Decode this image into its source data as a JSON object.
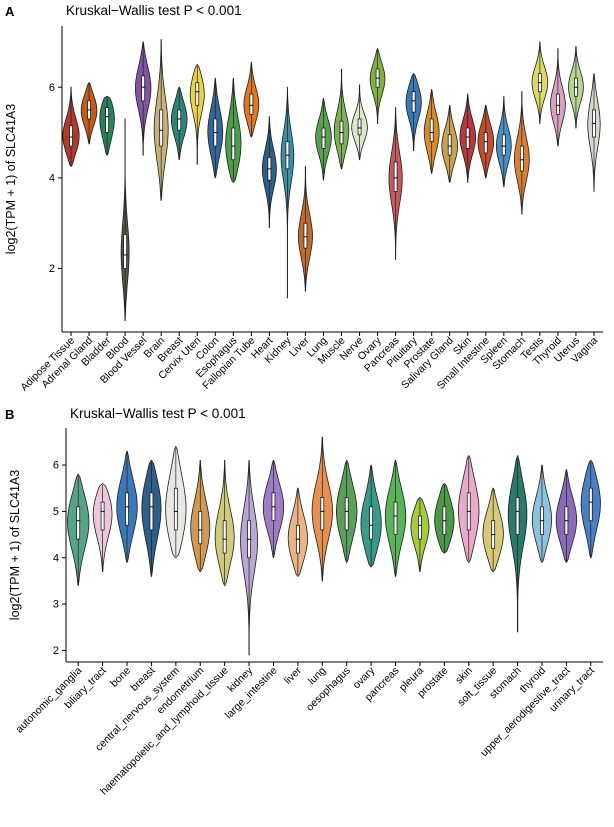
{
  "figure": {
    "panel_a_label": "A",
    "panel_b_label": "B"
  },
  "chart_data": [
    {
      "type": "violin",
      "panel": "A",
      "title": "Kruskal−Wallis test P < 0.001",
      "ylabel": "log2(TPM + 1) of SLC41A3",
      "ylim": [
        0.6,
        7.35
      ],
      "yticks": [
        2,
        4,
        6
      ],
      "grid": false,
      "legend": "none",
      "categories": [
        "Adipose Tissue",
        "Adrenal Gland",
        "Bladder",
        "Blood",
        "Blood Vessel",
        "Brain",
        "Breast",
        "Cervix Uteri",
        "Colon",
        "Esophagus",
        "Fallopian Tube",
        "Heart",
        "Kidney",
        "Liver",
        "Lung",
        "Muscle",
        "Nerve",
        "Ovary",
        "Pancreas",
        "Pituitary",
        "Prostate",
        "Salivary Gland",
        "Skin",
        "Small Intestine",
        "Spleen",
        "Stomach",
        "Testis",
        "Thyroid",
        "Uterus",
        "Vagina"
      ],
      "violins": [
        {
          "label": "Adipose Tissue",
          "color": "#b03a2e",
          "min": 4.25,
          "q1": 4.7,
          "median": 4.9,
          "q3": 5.15,
          "max": 6.0,
          "w": 1
        },
        {
          "label": "Adrenal Gland",
          "color": "#c35c1a",
          "min": 4.75,
          "q1": 5.3,
          "median": 5.5,
          "q3": 5.7,
          "max": 6.1,
          "w": 0.95
        },
        {
          "label": "Bladder",
          "color": "#27835a",
          "min": 4.5,
          "q1": 5.0,
          "median": 5.35,
          "q3": 5.55,
          "max": 5.8,
          "w": 0.9
        },
        {
          "label": "Blood",
          "color": "#55584a",
          "min": 0.85,
          "q1": 2.0,
          "median": 2.3,
          "q3": 2.75,
          "max": 5.3,
          "w": 0.5
        },
        {
          "label": "Blood Vessel",
          "color": "#8453a8",
          "min": 4.5,
          "q1": 5.7,
          "median": 6.0,
          "q3": 6.25,
          "max": 7.0,
          "w": 0.95
        },
        {
          "label": "Brain",
          "color": "#c9b27a",
          "min": 3.5,
          "q1": 4.7,
          "median": 5.05,
          "q3": 5.5,
          "max": 7.05,
          "w": 0.85
        },
        {
          "label": "Breast",
          "color": "#2e8577",
          "min": 4.4,
          "q1": 5.05,
          "median": 5.3,
          "q3": 5.5,
          "max": 6.0,
          "w": 0.95
        },
        {
          "label": "Cervix Uteri",
          "color": "#ecd545",
          "min": 4.3,
          "q1": 5.6,
          "median": 5.9,
          "q3": 6.1,
          "max": 6.5,
          "w": 0.9
        },
        {
          "label": "Colon",
          "color": "#31659c",
          "min": 4.0,
          "q1": 4.7,
          "median": 5.0,
          "q3": 5.3,
          "max": 6.2,
          "w": 0.9
        },
        {
          "label": "Esophagus",
          "color": "#4b9e47",
          "min": 3.9,
          "q1": 4.4,
          "median": 4.7,
          "q3": 5.1,
          "max": 6.2,
          "w": 0.95
        },
        {
          "label": "Fallopian Tube",
          "color": "#e2771f",
          "min": 4.9,
          "q1": 5.4,
          "median": 5.6,
          "q3": 5.85,
          "max": 6.55,
          "w": 0.9
        },
        {
          "label": "Heart",
          "color": "#2c5f8a",
          "min": 2.9,
          "q1": 3.95,
          "median": 4.2,
          "q3": 4.45,
          "max": 5.35,
          "w": 0.85
        },
        {
          "label": "Kidney",
          "color": "#3d8fa5",
          "min": 1.35,
          "q1": 4.2,
          "median": 4.5,
          "q3": 4.8,
          "max": 6.0,
          "w": 0.8
        },
        {
          "label": "Liver",
          "color": "#c06a2b",
          "min": 1.5,
          "q1": 2.45,
          "median": 2.7,
          "q3": 3.0,
          "max": 4.25,
          "w": 0.85
        },
        {
          "label": "Lung",
          "color": "#58a14e",
          "min": 3.95,
          "q1": 4.65,
          "median": 4.9,
          "q3": 5.1,
          "max": 5.75,
          "w": 0.95
        },
        {
          "label": "Muscle",
          "color": "#79b356",
          "min": 4.2,
          "q1": 4.75,
          "median": 5.0,
          "q3": 5.25,
          "max": 6.4,
          "w": 0.9
        },
        {
          "label": "Nerve",
          "color": "#dce9c8",
          "min": 4.4,
          "q1": 4.95,
          "median": 5.1,
          "q3": 5.3,
          "max": 6.05,
          "w": 0.95
        },
        {
          "label": "Ovary",
          "color": "#7cb342",
          "min": 5.2,
          "q1": 6.0,
          "median": 6.2,
          "q3": 6.4,
          "max": 6.85,
          "w": 0.9
        },
        {
          "label": "Pancreas",
          "color": "#c75b5b",
          "min": 2.2,
          "q1": 3.7,
          "median": 4.0,
          "q3": 4.35,
          "max": 5.55,
          "w": 0.8
        },
        {
          "label": "Pituitary",
          "color": "#3b78b5",
          "min": 4.6,
          "q1": 5.45,
          "median": 5.7,
          "q3": 5.9,
          "max": 6.3,
          "w": 0.95
        },
        {
          "label": "Prostate",
          "color": "#d98b27",
          "min": 4.1,
          "q1": 4.8,
          "median": 5.0,
          "q3": 5.3,
          "max": 5.95,
          "w": 0.9
        },
        {
          "label": "Salivary Gland",
          "color": "#c7a252",
          "min": 3.9,
          "q1": 4.5,
          "median": 4.7,
          "q3": 4.95,
          "max": 5.6,
          "w": 0.95
        },
        {
          "label": "Skin",
          "color": "#b23a3a",
          "min": 3.9,
          "q1": 4.65,
          "median": 4.9,
          "q3": 5.1,
          "max": 5.85,
          "w": 0.95
        },
        {
          "label": "Small Intestine",
          "color": "#c24e2e",
          "min": 4.0,
          "q1": 4.55,
          "median": 4.8,
          "q3": 5.0,
          "max": 5.6,
          "w": 0.95
        },
        {
          "label": "Spleen",
          "color": "#4a8fc2",
          "min": 3.8,
          "q1": 4.5,
          "median": 4.7,
          "q3": 4.95,
          "max": 5.8,
          "w": 0.9
        },
        {
          "label": "Stomach",
          "color": "#dd7f33",
          "min": 3.2,
          "q1": 4.15,
          "median": 4.4,
          "q3": 4.7,
          "max": 5.9,
          "w": 0.9
        },
        {
          "label": "Testis",
          "color": "#ded867",
          "min": 5.2,
          "q1": 5.9,
          "median": 6.1,
          "q3": 6.3,
          "max": 7.0,
          "w": 0.95
        },
        {
          "label": "Thyroid",
          "color": "#d9a0c4",
          "min": 4.7,
          "q1": 5.4,
          "median": 5.6,
          "q3": 5.85,
          "max": 6.85,
          "w": 0.9
        },
        {
          "label": "Uterus",
          "color": "#b5d78f",
          "min": 5.1,
          "q1": 5.8,
          "median": 6.0,
          "q3": 6.2,
          "max": 6.9,
          "w": 0.9
        },
        {
          "label": "Vagina",
          "color": "#d8d8d0",
          "min": 3.7,
          "q1": 4.9,
          "median": 5.2,
          "q3": 5.5,
          "max": 6.3,
          "w": 0.75
        }
      ]
    },
    {
      "type": "violin",
      "panel": "B",
      "title": "Kruskal−Wallis test P < 0.001",
      "ylabel": "log2(TPM + 1) of SLC41A3",
      "ylim": [
        1.75,
        6.8
      ],
      "yticks": [
        2,
        3,
        4,
        5,
        6
      ],
      "grid": false,
      "legend": "none",
      "categories": [
        "autonomic_ganglia",
        "biliary_tract",
        "bone",
        "breast",
        "central_nervous_system",
        "endometrium",
        "haematopoietic_and_lymphoid_tissue",
        "kidney",
        "large_intestine",
        "liver",
        "lung",
        "oesophagus",
        "ovary",
        "pancreas",
        "pleura",
        "prostate",
        "skin",
        "soft_tissue",
        "stomach",
        "thyroid",
        "upper_aerodigestive_tract",
        "urinary_tract"
      ],
      "violins": [
        {
          "label": "autonomic_ganglia",
          "color": "#56a487",
          "min": 3.4,
          "q1": 4.4,
          "median": 4.8,
          "q3": 5.1,
          "max": 5.8,
          "w": 1
        },
        {
          "label": "biliary_tract",
          "color": "#ecc6dc",
          "min": 3.7,
          "q1": 4.6,
          "median": 5.0,
          "q3": 5.2,
          "max": 5.6,
          "w": 0.9
        },
        {
          "label": "bone",
          "color": "#3b78b5",
          "min": 3.9,
          "q1": 4.7,
          "median": 5.1,
          "q3": 5.4,
          "max": 6.3,
          "w": 0.95
        },
        {
          "label": "breast",
          "color": "#2c5f8a",
          "min": 3.6,
          "q1": 4.6,
          "median": 5.1,
          "q3": 5.4,
          "max": 6.1,
          "w": 0.9
        },
        {
          "label": "central_nervous_system",
          "color": "#e8e8e4",
          "min": 4.0,
          "q1": 4.6,
          "median": 5.0,
          "q3": 5.5,
          "max": 6.4,
          "w": 0.95
        },
        {
          "label": "endometrium",
          "color": "#cf9a52",
          "min": 3.7,
          "q1": 4.3,
          "median": 4.6,
          "q3": 5.0,
          "max": 6.1,
          "w": 0.9
        },
        {
          "label": "haematopoietic_and_lymphoid_tissue",
          "color": "#cfcb7a",
          "min": 3.4,
          "q1": 4.1,
          "median": 4.4,
          "q3": 4.8,
          "max": 6.1,
          "w": 0.9
        },
        {
          "label": "kidney",
          "color": "#b9a8d4",
          "min": 1.9,
          "q1": 4.0,
          "median": 4.4,
          "q3": 4.8,
          "max": 6.1,
          "w": 0.8
        },
        {
          "label": "large_intestine",
          "color": "#a07cc6",
          "min": 4.0,
          "q1": 4.8,
          "median": 5.1,
          "q3": 5.4,
          "max": 6.1,
          "w": 0.95
        },
        {
          "label": "liver",
          "color": "#eab584",
          "min": 3.6,
          "q1": 4.1,
          "median": 4.4,
          "q3": 4.7,
          "max": 5.5,
          "w": 0.9
        },
        {
          "label": "lung",
          "color": "#e89050",
          "min": 3.5,
          "q1": 4.6,
          "median": 5.0,
          "q3": 5.3,
          "max": 6.6,
          "w": 0.95
        },
        {
          "label": "oesophagus",
          "color": "#5aa05a",
          "min": 3.9,
          "q1": 4.6,
          "median": 5.0,
          "q3": 5.3,
          "max": 6.1,
          "w": 0.95
        },
        {
          "label": "ovary",
          "color": "#3a9a8a",
          "min": 3.8,
          "q1": 4.4,
          "median": 4.7,
          "q3": 5.1,
          "max": 6.0,
          "w": 0.95
        },
        {
          "label": "pancreas",
          "color": "#57b457",
          "min": 3.6,
          "q1": 4.5,
          "median": 4.9,
          "q3": 5.2,
          "max": 6.1,
          "w": 0.95
        },
        {
          "label": "pleura",
          "color": "#a4cc3f",
          "min": 3.7,
          "q1": 4.4,
          "median": 4.7,
          "q3": 4.9,
          "max": 5.3,
          "w": 0.85
        },
        {
          "label": "prostate",
          "color": "#4a9a4a",
          "min": 4.1,
          "q1": 4.5,
          "median": 4.8,
          "q3": 5.1,
          "max": 5.6,
          "w": 0.9
        },
        {
          "label": "skin",
          "color": "#eaa9c9",
          "min": 3.9,
          "q1": 4.6,
          "median": 5.0,
          "q3": 5.4,
          "max": 6.2,
          "w": 0.95
        },
        {
          "label": "soft_tissue",
          "color": "#d9c878",
          "min": 3.7,
          "q1": 4.2,
          "median": 4.5,
          "q3": 4.8,
          "max": 5.5,
          "w": 0.95
        },
        {
          "label": "stomach",
          "color": "#2a7a6b",
          "min": 2.4,
          "q1": 4.5,
          "median": 5.0,
          "q3": 5.3,
          "max": 6.2,
          "w": 0.9
        },
        {
          "label": "thyroid",
          "color": "#8cc3dc",
          "min": 3.9,
          "q1": 4.5,
          "median": 4.8,
          "q3": 5.1,
          "max": 6.0,
          "w": 0.9
        },
        {
          "label": "upper_aerodigestive_tract",
          "color": "#8a6ab8",
          "min": 3.9,
          "q1": 4.5,
          "median": 4.8,
          "q3": 5.1,
          "max": 5.9,
          "w": 0.95
        },
        {
          "label": "urinary_tract",
          "color": "#4a80c0",
          "min": 4.0,
          "q1": 4.8,
          "median": 5.2,
          "q3": 5.5,
          "max": 6.1,
          "w": 0.9
        }
      ]
    }
  ]
}
